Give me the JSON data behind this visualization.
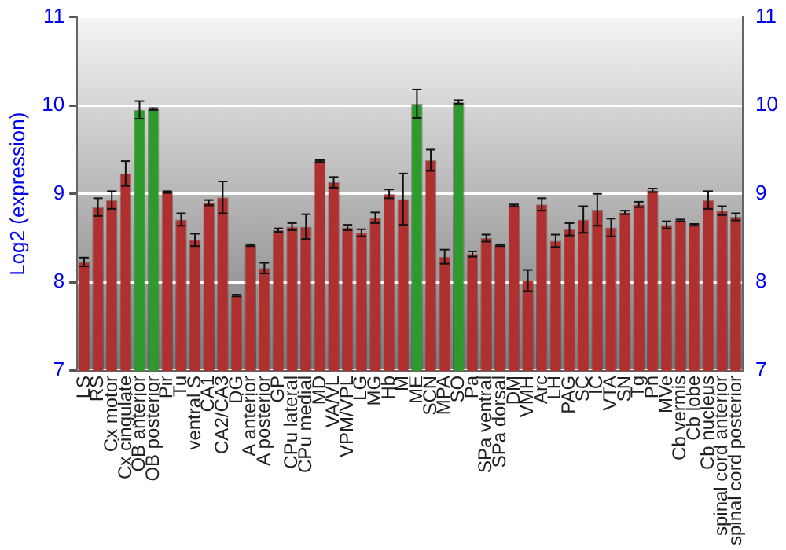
{
  "chart_data": {
    "type": "bar",
    "ylabel": "Log2 (expression)",
    "categories": [
      "LS",
      "RS",
      "Cx motor",
      "Cx cingulate",
      "OB anterior",
      "OB posterior",
      "Pir",
      "Tu",
      "ventral S",
      "CA1",
      "CA2/CA3",
      "DG",
      "A anterior",
      "A posterior",
      "GP",
      "CPu lateral",
      "CPu medial",
      "MD",
      "VA/VL",
      "VPM/VPL",
      "LG",
      "MG",
      "Hb",
      "M",
      "ME",
      "SCN",
      "MPA",
      "SO",
      "Pa",
      "SPa ventral",
      "SPa dorsal",
      "DM",
      "VMH",
      "Arc",
      "LH",
      "PAG",
      "SC",
      "IC",
      "VTA",
      "SN",
      "Tg",
      "Pn",
      "MVe",
      "Cb vermis",
      "Cb lobe",
      "Cb nucleus",
      "spinal cord anterior",
      "spinal cord posterior"
    ],
    "values": [
      8.23,
      8.85,
      8.93,
      9.23,
      9.95,
      9.96,
      9.02,
      8.71,
      8.48,
      8.9,
      8.96,
      7.85,
      8.42,
      8.16,
      8.59,
      8.63,
      8.63,
      9.37,
      9.13,
      8.62,
      8.56,
      8.73,
      9.0,
      8.94,
      10.02,
      9.38,
      8.29,
      10.04,
      8.32,
      8.5,
      8.42,
      8.87,
      8.02,
      8.88,
      8.47,
      8.6,
      8.71,
      8.82,
      8.62,
      8.79,
      8.88,
      9.04,
      8.65,
      8.7,
      8.65,
      8.93,
      8.81,
      8.74
    ],
    "errors": [
      0.05,
      0.1,
      0.1,
      0.14,
      0.1,
      0.01,
      0.01,
      0.07,
      0.07,
      0.03,
      0.18,
      0.01,
      0.01,
      0.06,
      0.02,
      0.04,
      0.14,
      0.01,
      0.06,
      0.03,
      0.04,
      0.06,
      0.05,
      0.29,
      0.16,
      0.12,
      0.08,
      0.02,
      0.03,
      0.04,
      0.01,
      0.01,
      0.12,
      0.07,
      0.07,
      0.07,
      0.15,
      0.18,
      0.1,
      0.02,
      0.03,
      0.02,
      0.04,
      0.01,
      0.01,
      0.1,
      0.05,
      0.04
    ],
    "colors": [
      "#b03030",
      "#b03030",
      "#b03030",
      "#b03030",
      "#2e9a2e",
      "#2e9a2e",
      "#b03030",
      "#b03030",
      "#b03030",
      "#b03030",
      "#b03030",
      "#b03030",
      "#b03030",
      "#b03030",
      "#b03030",
      "#b03030",
      "#b03030",
      "#b03030",
      "#b03030",
      "#b03030",
      "#b03030",
      "#b03030",
      "#b03030",
      "#b03030",
      "#2e9a2e",
      "#b03030",
      "#b03030",
      "#2e9a2e",
      "#b03030",
      "#b03030",
      "#b03030",
      "#b03030",
      "#b03030",
      "#b03030",
      "#b03030",
      "#b03030",
      "#b03030",
      "#b03030",
      "#b03030",
      "#b03030",
      "#b03030",
      "#b03030",
      "#b03030",
      "#b03030",
      "#b03030",
      "#b03030",
      "#b03030",
      "#b03030"
    ],
    "ylim": [
      7,
      11
    ],
    "yticks": [
      7,
      8,
      9,
      10,
      11
    ],
    "y2lim": [
      7,
      11
    ],
    "y2ticks": [
      7,
      8,
      9,
      10,
      11
    ],
    "grid": "y",
    "legend": false
  }
}
